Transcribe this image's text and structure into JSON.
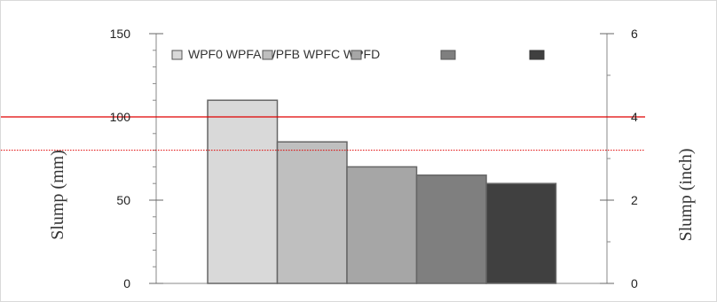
{
  "chart_data": {
    "type": "bar",
    "categories": [
      "WPF0",
      "WPFA",
      "WPFB",
      "WPFC",
      "WPFD"
    ],
    "values": [
      110,
      85,
      70,
      65,
      60
    ],
    "bar_colors": [
      "#d9d9d9",
      "#bfbfbf",
      "#a6a6a6",
      "#7f7f7f",
      "#404040"
    ],
    "bar_stroke": "#666666",
    "ylabel": "Slump (mm)",
    "ylabel_right": "Slump (inch)",
    "ylim": [
      0,
      150
    ],
    "ylim_right": [
      0,
      6
    ],
    "yticks": [
      "0",
      "50",
      "100",
      "150"
    ],
    "yticks_right": [
      "0",
      "2",
      "4",
      "6"
    ],
    "legend": {
      "text": "WPF0 WPFA WPFB WPFC WPFD",
      "placement": "top-left"
    },
    "reference_lines": [
      {
        "value": 100,
        "style": "solid",
        "color": "#e00000"
      },
      {
        "value": 80,
        "style": "dotted",
        "color": "#e00000"
      }
    ],
    "grid": false
  }
}
